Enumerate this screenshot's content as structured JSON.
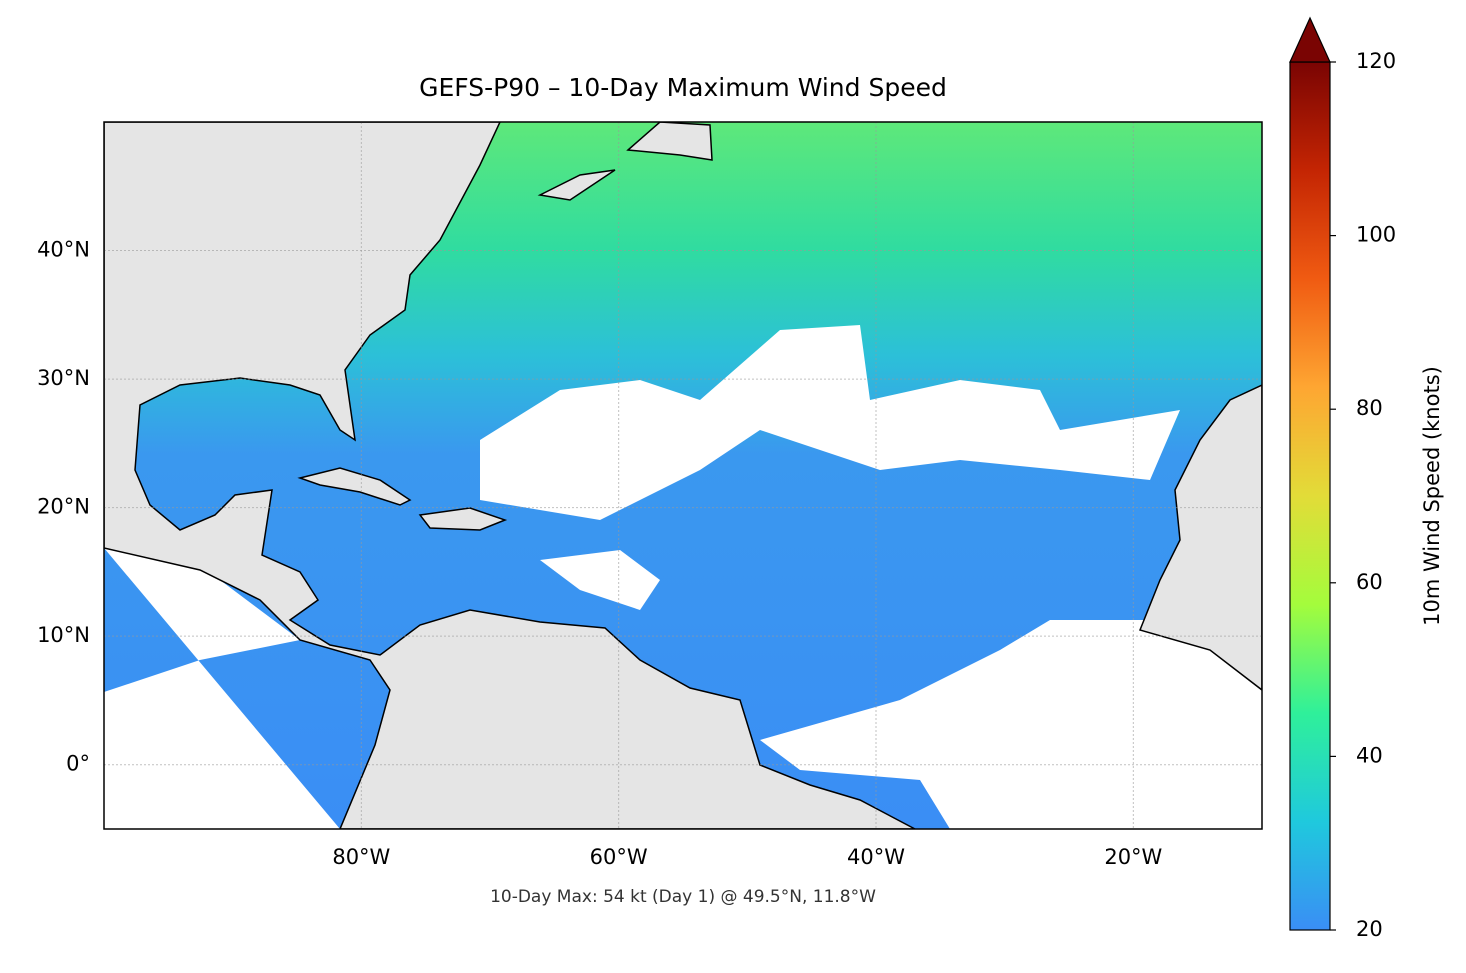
{
  "chart_data": {
    "type": "map",
    "title": "GEFS-P90 – 10-Day Maximum Wind Speed",
    "annotation": "10-Day Max: 54 kt (Day 1) @ 49.5°N, 11.8°W",
    "xlim": [
      -100,
      -10
    ],
    "ylim": [
      -5,
      50
    ],
    "xticks": [
      {
        "value": -80,
        "label": "80°W"
      },
      {
        "value": -60,
        "label": "60°W"
      },
      {
        "value": -40,
        "label": "40°W"
      },
      {
        "value": -20,
        "label": "20°W"
      }
    ],
    "yticks": [
      {
        "value": 0,
        "label": "0°"
      },
      {
        "value": 10,
        "label": "10°N"
      },
      {
        "value": 20,
        "label": "20°N"
      },
      {
        "value": 30,
        "label": "30°N"
      },
      {
        "value": 40,
        "label": "40°N"
      }
    ],
    "grid": true,
    "colorbar": {
      "label": "10m Wind Speed (knots)",
      "lim": [
        20,
        120
      ],
      "ticks": [
        20,
        40,
        60,
        80,
        100,
        120
      ],
      "extend": "max",
      "colormap": [
        "#3a8ef5",
        "#1fc9dd",
        "#2ff09a",
        "#a4fc3c",
        "#e2dc38",
        "#fea632",
        "#f05b12",
        "#c42503",
        "#7a0403"
      ]
    }
  }
}
